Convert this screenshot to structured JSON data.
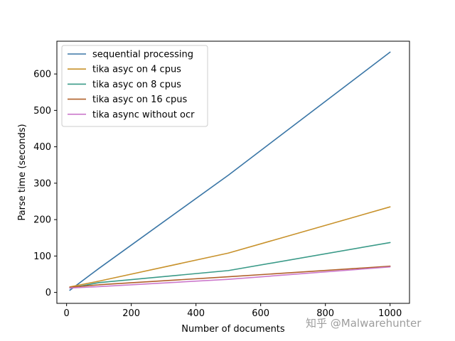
{
  "chart_data": {
    "type": "line",
    "title": "",
    "xlabel": "Number of documents",
    "ylabel": "Parse time (seconds)",
    "xlim": [
      -30,
      1060
    ],
    "ylim": [
      -30,
      690
    ],
    "xticks": [
      0,
      200,
      400,
      600,
      800,
      1000
    ],
    "yticks": [
      0,
      100,
      200,
      300,
      400,
      500,
      600
    ],
    "grid": false,
    "legend_position": "top-left",
    "x": [
      10,
      100,
      500,
      1000
    ],
    "series": [
      {
        "name": "sequential processing",
        "color": "#3a76a6",
        "values": [
          6,
          66,
          322,
          660
        ]
      },
      {
        "name": "tika asyc on 4 cpus",
        "color": "#c8922c",
        "values": [
          15,
          31,
          108,
          235
        ]
      },
      {
        "name": "tika asyc on 8 cpus",
        "color": "#3a9a88",
        "values": [
          12,
          27,
          60,
          137
        ]
      },
      {
        "name": "tika asyc on 16 cpus",
        "color": "#b0602a",
        "values": [
          14,
          21,
          43,
          72
        ]
      },
      {
        "name": "tika async without ocr",
        "color": "#cc79cc",
        "values": [
          12,
          16,
          36,
          70
        ]
      }
    ]
  },
  "watermark": "知乎 @Malwarehunter"
}
